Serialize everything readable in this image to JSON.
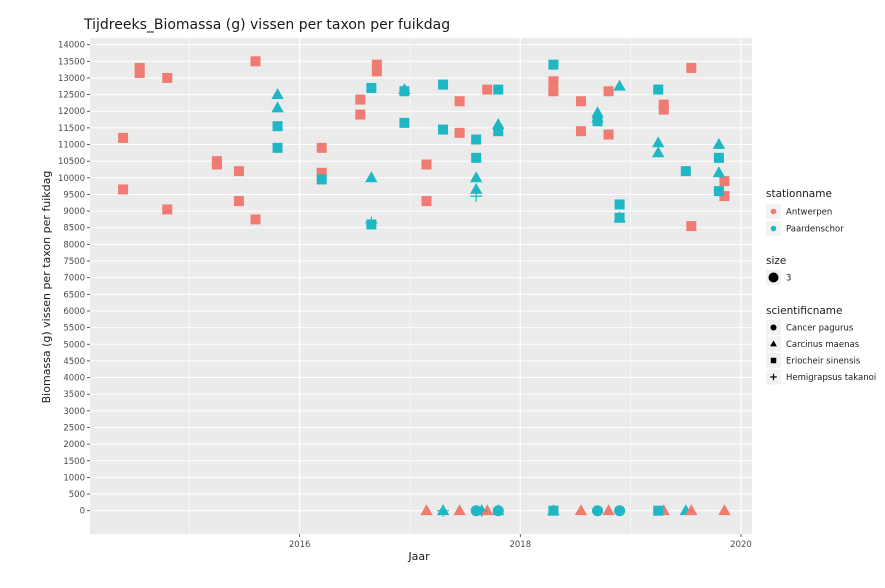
{
  "colors": {
    "antwerpen": "#F07B72",
    "paardenschor": "#1FB7C4",
    "panel_bg": "#EBEBEB",
    "grid": "#FFFFFF",
    "legend_key_bg": "#F2F2F2"
  },
  "chart_data": {
    "type": "scatter",
    "title": "Tijdreeks_Biomassa (g) vissen per taxon per fuikdag",
    "xlabel": "Jaar",
    "ylabel": "Biomassa (g) vissen per taxon per fuikdag",
    "xlim": [
      2014.1,
      2020.1
    ],
    "ylim": [
      -700,
      14200
    ],
    "x_ticks": [
      2016,
      2018,
      2020
    ],
    "x_tick_labels": [
      "2016",
      "2018",
      "2020"
    ],
    "y_ticks": [
      0,
      500,
      1000,
      1500,
      2000,
      2500,
      3000,
      3500,
      4000,
      4500,
      5000,
      5500,
      6000,
      6500,
      7000,
      7500,
      8000,
      8500,
      9000,
      9500,
      10000,
      10500,
      11000,
      11500,
      12000,
      12500,
      13000,
      13500,
      14000
    ],
    "y_tick_labels": [
      "0",
      "500",
      "1000",
      "1500",
      "2000",
      "2500",
      "3000",
      "3500",
      "4000",
      "4500",
      "5000",
      "5500",
      "6000",
      "6500",
      "7000",
      "7500",
      "8000",
      "8500",
      "9000",
      "9500",
      "10000",
      "10500",
      "11000",
      "11500",
      "12000",
      "12500",
      "13000",
      "13500",
      "14000"
    ],
    "legend": {
      "color_title": "stationname",
      "color_entries": [
        {
          "label": "Antwerpen",
          "key": "antwerpen"
        },
        {
          "label": "Paardenschor",
          "key": "paardenschor"
        }
      ],
      "size_title": "size",
      "size_entries": [
        {
          "label": "3"
        }
      ],
      "shape_title": "scientificname",
      "shape_entries": [
        {
          "label": "Cancer pagurus",
          "shape": "circle"
        },
        {
          "label": "Carcinus maenas",
          "shape": "triangle"
        },
        {
          "label": "Eriocheir sinensis",
          "shape": "square"
        },
        {
          "label": "Hemigrapsus takanoi",
          "shape": "plus"
        }
      ]
    },
    "series": [
      {
        "station": "Antwerpen",
        "species": "Eriocheir sinensis",
        "x": [
          2014.4,
          2014.4,
          2014.55,
          2014.55,
          2014.8,
          2014.8,
          2015.25,
          2015.25,
          2015.45,
          2015.45,
          2015.6,
          2015.6,
          2016.2,
          2016.2,
          2016.55,
          2016.55,
          2016.7,
          2016.7,
          2017.15,
          2017.15,
          2017.45,
          2017.45,
          2017.7,
          2018.3,
          2018.3,
          2018.55,
          2018.55,
          2018.8,
          2018.8,
          2019.3,
          2019.3,
          2019.55,
          2019.55,
          2019.85,
          2019.85
        ],
        "y": [
          11200,
          9650,
          13300,
          13150,
          13000,
          9050,
          10500,
          10400,
          10200,
          9300,
          13500,
          8750,
          10900,
          10150,
          12350,
          11900,
          13400,
          13200,
          10400,
          9300,
          12300,
          11350,
          12650,
          12900,
          12600,
          12300,
          11400,
          12600,
          11300,
          12200,
          12050,
          13300,
          8550,
          9900,
          9450
        ]
      },
      {
        "station": "Paardenschor",
        "species": "Eriocheir sinensis",
        "x": [
          2015.8,
          2015.8,
          2016.2,
          2016.65,
          2016.65,
          2016.95,
          2016.95,
          2017.3,
          2017.3,
          2017.6,
          2017.6,
          2017.8,
          2017.8,
          2018.3,
          2018.7,
          2018.9,
          2018.9,
          2019.25,
          2019.5,
          2019.8,
          2019.8
        ],
        "y": [
          11550,
          10900,
          9950,
          12700,
          8600,
          12600,
          11650,
          12800,
          11450,
          11150,
          10600,
          12650,
          11400,
          13400,
          11700,
          9200,
          8800,
          12650,
          10200,
          10600,
          9600
        ]
      },
      {
        "station": "Paardenschor",
        "species": "Carcinus maenas",
        "x": [
          2015.8,
          2015.8,
          2016.65,
          2016.95,
          2017.6,
          2017.6,
          2017.8,
          2018.7,
          2018.7,
          2018.9,
          2018.9,
          2019.25,
          2019.25,
          2019.8,
          2019.8,
          2017.3,
          2017.65,
          2017.8,
          2018.3,
          2019.5
        ],
        "y": [
          12500,
          12100,
          10000,
          12650,
          10000,
          9650,
          11600,
          11950,
          11800,
          12750,
          8800,
          11050,
          10750,
          11000,
          10150,
          0,
          0,
          0,
          0,
          0
        ]
      },
      {
        "station": "Antwerpen",
        "species": "Carcinus maenas",
        "x": [
          2017.15,
          2017.45,
          2017.7,
          2018.55,
          2018.8,
          2019.3,
          2019.55,
          2019.85
        ],
        "y": [
          0,
          0,
          0,
          0,
          0,
          0,
          0,
          0
        ]
      },
      {
        "station": "Paardenschor",
        "species": "Hemigrapsus takanoi",
        "x": [
          2016.65,
          2017.6,
          2017.3,
          2017.65
        ],
        "y": [
          8650,
          9450,
          0,
          0
        ]
      },
      {
        "station": "Paardenschor",
        "species": "Cancer pagurus",
        "x": [
          2017.6,
          2017.8,
          2018.7,
          2018.9
        ],
        "y": [
          0,
          0,
          0,
          0
        ]
      },
      {
        "station": "Paardenschor",
        "species": "Eriocheir sinensis",
        "x": [
          2018.3,
          2019.25
        ],
        "y": [
          0,
          0
        ]
      }
    ]
  }
}
